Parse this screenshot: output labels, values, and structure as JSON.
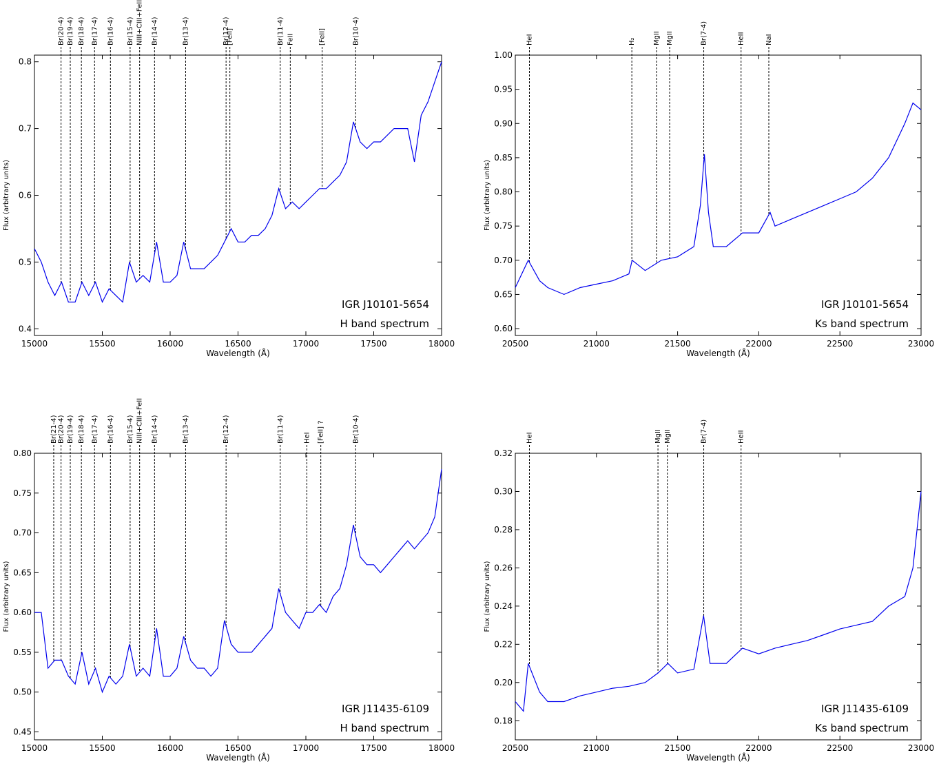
{
  "chart_data": [
    {
      "type": "line",
      "xlabel": "Wavelength (Å)",
      "ylabel": "Flux (arbitrary units)",
      "source": "IGR J10101-5654",
      "band": "H band spectrum",
      "color": "#0000ee",
      "xlim": [
        15000,
        18000
      ],
      "ylim": [
        0.39,
        0.81
      ],
      "xticks": [
        15000,
        15500,
        16000,
        16500,
        17000,
        17500,
        18000
      ],
      "yticks": [
        0.4,
        0.5,
        0.6,
        0.7,
        0.8
      ],
      "x": [
        15000,
        15050,
        15100,
        15150,
        15200,
        15250,
        15300,
        15350,
        15400,
        15450,
        15500,
        15550,
        15600,
        15650,
        15700,
        15750,
        15800,
        15850,
        15900,
        15950,
        16000,
        16050,
        16100,
        16150,
        16200,
        16250,
        16300,
        16350,
        16400,
        16450,
        16500,
        16550,
        16600,
        16650,
        16700,
        16750,
        16800,
        16850,
        16900,
        16950,
        17000,
        17050,
        17100,
        17150,
        17200,
        17250,
        17300,
        17350,
        17400,
        17450,
        17500,
        17550,
        17600,
        17650,
        17700,
        17750,
        17800,
        17850,
        17900,
        17950,
        18000
      ],
      "values": [
        0.52,
        0.5,
        0.47,
        0.45,
        0.47,
        0.44,
        0.44,
        0.47,
        0.45,
        0.47,
        0.44,
        0.46,
        0.45,
        0.44,
        0.5,
        0.47,
        0.48,
        0.47,
        0.53,
        0.47,
        0.47,
        0.48,
        0.53,
        0.49,
        0.49,
        0.49,
        0.5,
        0.51,
        0.53,
        0.55,
        0.53,
        0.53,
        0.54,
        0.54,
        0.55,
        0.57,
        0.61,
        0.58,
        0.59,
        0.58,
        0.59,
        0.6,
        0.61,
        0.61,
        0.62,
        0.63,
        0.65,
        0.71,
        0.68,
        0.67,
        0.68,
        0.68,
        0.69,
        0.7,
        0.7,
        0.7,
        0.65,
        0.72,
        0.74,
        0.77,
        0.8
      ],
      "lines": [
        {
          "label": "Br(20-4)",
          "x": 15196
        },
        {
          "label": "Br(19-4)",
          "x": 15264
        },
        {
          "label": "Br(18-4)",
          "x": 15346
        },
        {
          "label": "Br(17-4)",
          "x": 15443
        },
        {
          "label": "Br(16-4)",
          "x": 15560
        },
        {
          "label": "Br(15-4)",
          "x": 15705
        },
        {
          "label": "NIII+CIII+FeII",
          "x": 15775
        },
        {
          "label": "Br(14-4)",
          "x": 15885
        },
        {
          "label": "Br(13-4)",
          "x": 16114
        },
        {
          "label": "Br(12-4)",
          "x": 16412
        },
        {
          "label": "[FeII]",
          "x": 16440
        },
        {
          "label": "Br(11-4)",
          "x": 16811
        },
        {
          "label": "FeII",
          "x": 16885
        },
        {
          "label": "[FeII]",
          "x": 17120
        },
        {
          "label": "Br(10-4)",
          "x": 17367
        }
      ]
    },
    {
      "type": "line",
      "xlabel": "Wavelength (Å)",
      "ylabel": "Flux (arbitrary units)",
      "source": "IGR J10101-5654",
      "band": "Ks band spectrum",
      "color": "#0000ee",
      "xlim": [
        20500,
        23000
      ],
      "ylim": [
        0.59,
        1.0
      ],
      "xticks": [
        20500,
        21000,
        21500,
        22000,
        22500,
        23000
      ],
      "yticks": [
        {
          "value": 0.6,
          "label": "0.60"
        },
        0.65,
        {
          "value": 0.7,
          "label": "0.70"
        },
        0.75,
        {
          "value": 0.8,
          "label": "0.80"
        },
        0.85,
        {
          "value": 0.9,
          "label": "0.90"
        },
        0.95,
        {
          "value": 1.0,
          "label": "1.00"
        }
      ],
      "x": [
        20500,
        20580,
        20650,
        20700,
        20800,
        20900,
        21000,
        21100,
        21200,
        21220,
        21300,
        21400,
        21500,
        21600,
        21640,
        21665,
        21690,
        21720,
        21800,
        21900,
        22000,
        22070,
        22100,
        22200,
        22300,
        22400,
        22500,
        22600,
        22700,
        22800,
        22900,
        22950,
        23000
      ],
      "values": [
        0.66,
        0.7,
        0.67,
        0.66,
        0.65,
        0.66,
        0.665,
        0.67,
        0.68,
        0.7,
        0.685,
        0.7,
        0.705,
        0.72,
        0.78,
        0.855,
        0.77,
        0.72,
        0.72,
        0.74,
        0.74,
        0.77,
        0.75,
        0.76,
        0.77,
        0.78,
        0.79,
        0.8,
        0.82,
        0.85,
        0.9,
        0.93,
        0.92
      ],
      "lines": [
        {
          "label": "HeI",
          "x": 20587
        },
        {
          "label": "H₂",
          "x": 21218
        },
        {
          "label": "MgII",
          "x": 21370
        },
        {
          "label": "MgII",
          "x": 21451
        },
        {
          "label": "Br(7-4)",
          "x": 21661
        },
        {
          "label": "HeII",
          "x": 21891
        },
        {
          "label": "NaI",
          "x": 22062
        }
      ]
    },
    {
      "type": "line",
      "xlabel": "Wavelength (Å)",
      "ylabel": "Flux (arbitrary units)",
      "source": "IGR J11435-6109",
      "band": "H band spectrum",
      "color": "#0000ee",
      "xlim": [
        15000,
        18000
      ],
      "ylim": [
        0.44,
        0.8
      ],
      "xticks": [
        15000,
        15500,
        16000,
        16500,
        17000,
        17500,
        18000
      ],
      "yticks": [
        0.45,
        {
          "value": 0.5,
          "label": "0.50"
        },
        0.55,
        {
          "value": 0.6,
          "label": "0.60"
        },
        0.65,
        {
          "value": 0.7,
          "label": "0.70"
        },
        0.75,
        {
          "value": 0.8,
          "label": "0.80"
        }
      ],
      "x": [
        15000,
        15050,
        15100,
        15150,
        15200,
        15250,
        15300,
        15350,
        15400,
        15450,
        15500,
        15550,
        15600,
        15650,
        15700,
        15750,
        15800,
        15850,
        15900,
        15950,
        16000,
        16050,
        16100,
        16150,
        16200,
        16250,
        16300,
        16350,
        16400,
        16450,
        16500,
        16550,
        16600,
        16650,
        16700,
        16750,
        16800,
        16850,
        16900,
        16950,
        17000,
        17050,
        17100,
        17150,
        17200,
        17250,
        17300,
        17350,
        17400,
        17450,
        17500,
        17550,
        17600,
        17650,
        17700,
        17750,
        17800,
        17850,
        17900,
        17950,
        18000
      ],
      "values": [
        0.6,
        0.6,
        0.53,
        0.54,
        0.54,
        0.52,
        0.51,
        0.55,
        0.51,
        0.53,
        0.5,
        0.52,
        0.51,
        0.52,
        0.56,
        0.52,
        0.53,
        0.52,
        0.58,
        0.52,
        0.52,
        0.53,
        0.57,
        0.54,
        0.53,
        0.53,
        0.52,
        0.53,
        0.59,
        0.56,
        0.55,
        0.55,
        0.55,
        0.56,
        0.57,
        0.58,
        0.63,
        0.6,
        0.59,
        0.58,
        0.6,
        0.6,
        0.61,
        0.6,
        0.62,
        0.63,
        0.66,
        0.71,
        0.67,
        0.66,
        0.66,
        0.65,
        0.66,
        0.67,
        0.68,
        0.69,
        0.68,
        0.69,
        0.7,
        0.72,
        0.78
      ],
      "lines": [
        {
          "label": "Br(21-4)",
          "x": 15142
        },
        {
          "label": "Br(20-4)",
          "x": 15196
        },
        {
          "label": "Br(19-4)",
          "x": 15264
        },
        {
          "label": "Br(18-4)",
          "x": 15346
        },
        {
          "label": "Br(17-4)",
          "x": 15443
        },
        {
          "label": "Br(16-4)",
          "x": 15560
        },
        {
          "label": "Br(15-4)",
          "x": 15705
        },
        {
          "label": "NIII+CIII+FeII",
          "x": 15775
        },
        {
          "label": "Br(14-4)",
          "x": 15885
        },
        {
          "label": "Br(13-4)",
          "x": 16114
        },
        {
          "label": "Br(12-4)",
          "x": 16412
        },
        {
          "label": "Br(11-4)",
          "x": 16811
        },
        {
          "label": "HeI",
          "x": 17007
        },
        {
          "label": "[FeII] ?",
          "x": 17110
        },
        {
          "label": "Br(10-4)",
          "x": 17367
        }
      ]
    },
    {
      "type": "line",
      "xlabel": "Wavelength (Å)",
      "ylabel": "Flux (arbitrary units)",
      "source": "IGR J11435-6109",
      "band": "Ks band spectrum",
      "color": "#0000ee",
      "xlim": [
        20500,
        23000
      ],
      "ylim": [
        0.17,
        0.32
      ],
      "xticks": [
        20500,
        21000,
        21500,
        22000,
        22500,
        23000
      ],
      "yticks": [
        0.18,
        {
          "value": 0.2,
          "label": "0.20"
        },
        0.22,
        0.24,
        0.26,
        0.28,
        {
          "value": 0.3,
          "label": "0.30"
        },
        0.32
      ],
      "x": [
        20500,
        20550,
        20580,
        20650,
        20700,
        20800,
        20900,
        21000,
        21100,
        21200,
        21300,
        21380,
        21440,
        21500,
        21600,
        21660,
        21700,
        21800,
        21900,
        22000,
        22100,
        22200,
        22300,
        22400,
        22500,
        22600,
        22700,
        22800,
        22900,
        22950,
        23000
      ],
      "values": [
        0.19,
        0.185,
        0.21,
        0.195,
        0.19,
        0.19,
        0.193,
        0.195,
        0.197,
        0.198,
        0.2,
        0.205,
        0.21,
        0.205,
        0.207,
        0.235,
        0.21,
        0.21,
        0.218,
        0.215,
        0.218,
        0.22,
        0.222,
        0.225,
        0.228,
        0.23,
        0.232,
        0.24,
        0.245,
        0.26,
        0.3
      ],
      "lines": [
        {
          "label": "HeI",
          "x": 20587
        },
        {
          "label": "MgII",
          "x": 21379
        },
        {
          "label": "MgII",
          "x": 21437
        },
        {
          "label": "Br(7-4)",
          "x": 21661
        },
        {
          "label": "HeII",
          "x": 21891
        }
      ]
    }
  ]
}
